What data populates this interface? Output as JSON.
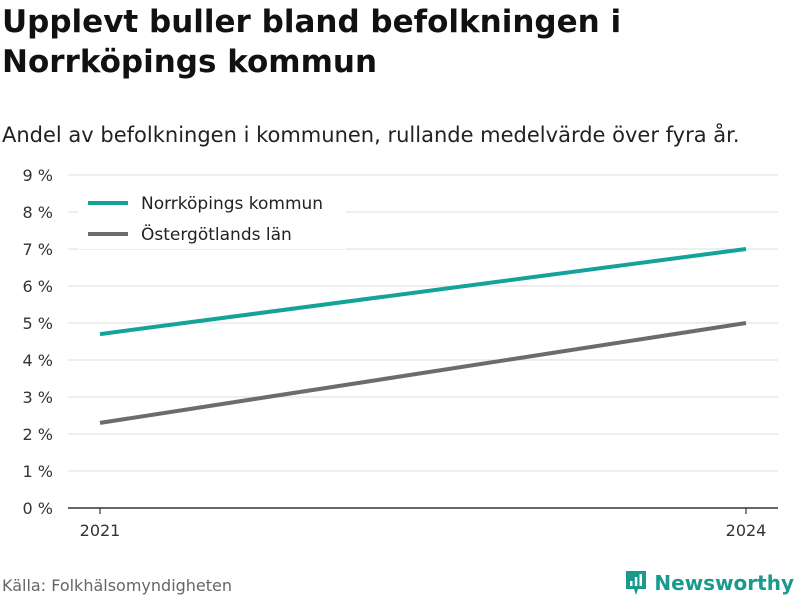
{
  "header": {
    "title": "Upplevt buller bland befolkningen i Norrköpings kommun",
    "subtitle": "Andel av befolkningen i kommunen, rullande medelvärde över fyra år."
  },
  "footer": {
    "source": "Källa: Folkhälsomyndigheten",
    "brand": "Newsworthy"
  },
  "colors": {
    "norrkoping": "#13a398",
    "ostergotland": "#6c6b70",
    "brand": "#1a9a8c"
  },
  "chart_data": {
    "type": "line",
    "x": [
      "2021",
      "2024"
    ],
    "series": [
      {
        "name": "Norrköpings kommun",
        "values": [
          4.7,
          7.0
        ],
        "color": "#13a398"
      },
      {
        "name": "Östergötlands län",
        "values": [
          2.3,
          5.0
        ],
        "color": "#6c6b70"
      }
    ],
    "ylim": [
      0,
      9
    ],
    "yticks": [
      "0 %",
      "1 %",
      "2 %",
      "3 %",
      "4 %",
      "5 %",
      "6 %",
      "7 %",
      "8 %",
      "9 %"
    ],
    "xticks": [
      "2021",
      "2024"
    ],
    "grid": true,
    "legend": "top-left"
  }
}
